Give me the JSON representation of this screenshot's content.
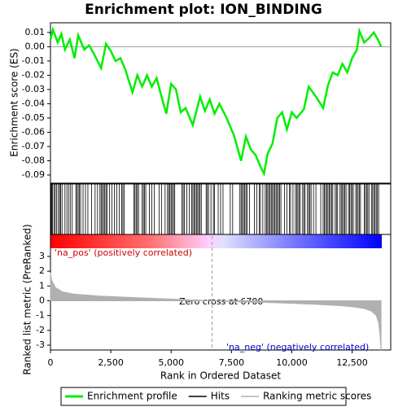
{
  "chart_data": [
    {
      "type": "line",
      "title": "Enrichment plot: ION_BINDING",
      "ylabel": "Enrichment score (ES)",
      "xlim": [
        0,
        14100
      ],
      "ylim": [
        -0.0957,
        0.0168
      ],
      "yticks": [
        0.01,
        {
          "value": 0,
          "label": "0.00"
        },
        -0.01,
        -0.02,
        -0.03,
        -0.04,
        -0.05,
        -0.06,
        -0.07,
        -0.08,
        -0.09
      ],
      "series": [
        {
          "name": "Enrichment profile",
          "color": "#00ee00",
          "x": [
            0,
            100,
            300,
            450,
            600,
            800,
            1000,
            1150,
            1400,
            1600,
            1800,
            2100,
            2300,
            2500,
            2700,
            2900,
            3100,
            3400,
            3600,
            3800,
            4000,
            4200,
            4400,
            4600,
            4800,
            5000,
            5200,
            5400,
            5600,
            5900,
            6200,
            6400,
            6600,
            6800,
            7000,
            7300,
            7600,
            7900,
            8100,
            8300,
            8500,
            8700,
            8850,
            9000,
            9200,
            9400,
            9600,
            9800,
            10000,
            10200,
            10500,
            10700,
            11000,
            11300,
            11500,
            11700,
            11900,
            12100,
            12300,
            12500,
            12700,
            12800,
            13000,
            13200,
            13400,
            13600,
            13700
          ],
          "values": [
            0.005,
            0.012,
            0.003,
            0.009,
            -0.002,
            0.005,
            -0.008,
            0.008,
            -0.002,
            0.001,
            -0.005,
            -0.015,
            0.002,
            -0.003,
            -0.01,
            -0.008,
            -0.016,
            -0.032,
            -0.02,
            -0.028,
            -0.02,
            -0.028,
            -0.022,
            -0.035,
            -0.047,
            -0.026,
            -0.03,
            -0.046,
            -0.043,
            -0.055,
            -0.035,
            -0.045,
            -0.037,
            -0.047,
            -0.04,
            -0.05,
            -0.062,
            -0.08,
            -0.063,
            -0.072,
            -0.076,
            -0.084,
            -0.089,
            -0.075,
            -0.068,
            -0.05,
            -0.046,
            -0.058,
            -0.046,
            -0.05,
            -0.044,
            -0.028,
            -0.035,
            -0.043,
            -0.027,
            -0.018,
            -0.02,
            -0.012,
            -0.018,
            -0.008,
            -0.002,
            0.011,
            0.003,
            0.006,
            0.01,
            0.004,
            0.0
          ]
        }
      ]
    },
    {
      "type": "hits",
      "xlim": [
        0,
        14100
      ],
      "series": [
        {
          "name": "Hits",
          "color": "#000000",
          "x": [
            30,
            60,
            90,
            150,
            200,
            260,
            330,
            380,
            420,
            480,
            600,
            680,
            750,
            820,
            900,
            1050,
            1100,
            1150,
            1200,
            1250,
            1350,
            1450,
            1550,
            1700,
            1850,
            1950,
            2050,
            2100,
            2150,
            2200,
            2250,
            2300,
            2350,
            2450,
            2550,
            2650,
            2750,
            2850,
            2950,
            3000,
            3050,
            3450,
            3500,
            3550,
            3600,
            3650,
            3800,
            3850,
            3900,
            3950,
            4100,
            4200,
            4300,
            4500,
            4600,
            4750,
            4850,
            4900,
            4950,
            5000,
            5050,
            5100,
            5150,
            5450,
            5500,
            5550,
            5650,
            5750,
            5850,
            5900,
            5950,
            6000,
            6050,
            6100,
            6150,
            6200,
            6250,
            6450,
            6500,
            6550,
            6650,
            6750,
            6800,
            6950,
            7050,
            7150,
            7450,
            7550,
            7850,
            7900,
            7950,
            8000,
            8050,
            8100,
            8150,
            8250,
            8450,
            8550,
            8650,
            8700,
            8800,
            8900,
            8950,
            9000,
            9050,
            9100,
            9150,
            9200,
            9250,
            9300,
            9350,
            9400,
            9450,
            9500,
            9550,
            9700,
            9800,
            9900,
            9950,
            10050,
            10150,
            10200,
            10250,
            10300,
            10350,
            10450,
            10500,
            10550,
            10650,
            10700,
            10750,
            10800,
            10900,
            11000,
            11200,
            11300,
            11350,
            11400,
            11450,
            11500,
            11550,
            11600,
            11650,
            11700,
            11800,
            11850,
            11900,
            12000,
            12050,
            12100,
            12150,
            12200,
            12250,
            12350,
            12400,
            12450,
            12500,
            12550,
            12650,
            12700,
            12750,
            12800,
            12850,
            13000,
            13050,
            13100,
            13150,
            13200,
            13300,
            13350,
            13400,
            13450,
            13500,
            13550,
            13600
          ]
        }
      ]
    },
    {
      "type": "area",
      "ylabel": "Ranked list metric (PreRanked)",
      "xlabel": "Rank in Ordered Dataset",
      "xlim": [
        0,
        14100
      ],
      "ylim": [
        -3.33,
        3.55
      ],
      "yticks": [
        3,
        2,
        1,
        0,
        -1,
        -2,
        -3
      ],
      "xticks": [
        0,
        {
          "value": 2500,
          "label": "2,500"
        },
        {
          "value": 5000,
          "label": "5,000"
        },
        {
          "value": 7500,
          "label": "7,500"
        },
        {
          "value": 10000,
          "label": "10,000"
        },
        {
          "value": 12500,
          "label": "12,500"
        }
      ],
      "zero_cross": 6700,
      "annotations": [
        "'na_pos' (positively correlated)",
        "Zero cross at 6700",
        "'na_neg' (negatively correlated)"
      ],
      "series": [
        {
          "name": "Ranking metric scores",
          "color": "#b0b0b0",
          "x": [
            0,
            50,
            200,
            500,
            1000,
            2000,
            3000,
            4000,
            5000,
            6000,
            6700,
            8000,
            9000,
            10000,
            11000,
            12000,
            12500,
            13000,
            13300,
            13500,
            13600,
            13650,
            13700
          ],
          "values": [
            1.9,
            1.4,
            0.9,
            0.6,
            0.45,
            0.32,
            0.25,
            0.18,
            0.12,
            0.05,
            0,
            -0.08,
            -0.12,
            -0.17,
            -0.24,
            -0.33,
            -0.4,
            -0.52,
            -0.7,
            -1.0,
            -1.5,
            -2.2,
            -3.35
          ]
        }
      ]
    }
  ]
}
